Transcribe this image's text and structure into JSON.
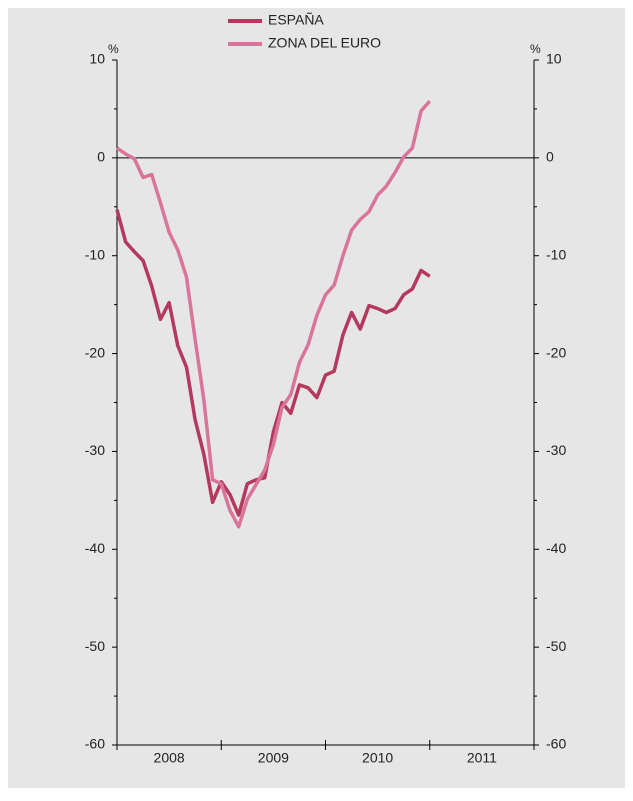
{
  "chart_data": {
    "type": "line",
    "x": [
      2008.0,
      2008.083,
      2008.167,
      2008.25,
      2008.333,
      2008.417,
      2008.5,
      2008.583,
      2008.667,
      2008.75,
      2008.833,
      2008.917,
      2009.0,
      2009.083,
      2009.167,
      2009.25,
      2009.333,
      2009.417,
      2009.5,
      2009.583,
      2009.667,
      2009.75,
      2009.833,
      2009.917,
      2010.0,
      2010.083,
      2010.167,
      2010.25,
      2010.333,
      2010.417,
      2010.5,
      2010.583,
      2010.667,
      2010.75,
      2010.833,
      2010.917,
      2011.0
    ],
    "series": [
      {
        "name": "ESPAÑA",
        "color": "#b5395f",
        "values": [
          -5.3,
          -8.6,
          -9.6,
          -10.5,
          -13.1,
          -16.5,
          -14.8,
          -19.2,
          -21.4,
          -26.8,
          -30.3,
          -35.2,
          -33.1,
          -34.4,
          -36.5,
          -33.3,
          -32.9,
          -32.7,
          -28.0,
          -25.0,
          -26.1,
          -23.2,
          -23.5,
          -24.5,
          -22.2,
          -21.8,
          -18.1,
          -15.8,
          -17.5,
          -15.1,
          -15.4,
          -15.8,
          -15.4,
          -14.0,
          -13.4,
          -11.5,
          -12.1
        ]
      },
      {
        "name": "ZONA DEL EURO",
        "color": "#d9749a",
        "values": [
          1.0,
          0.4,
          -0.1,
          -2.0,
          -1.7,
          -4.6,
          -7.6,
          -9.4,
          -12.2,
          -18.6,
          -24.7,
          -32.9,
          -33.3,
          -36.0,
          -37.7,
          -34.9,
          -33.4,
          -31.9,
          -29.3,
          -25.5,
          -24.2,
          -20.9,
          -19.1,
          -16.1,
          -14.0,
          -13.0,
          -10.0,
          -7.4,
          -6.3,
          -5.5,
          -3.8,
          -2.9,
          -1.5,
          0.1,
          1.0,
          4.8,
          5.8
        ]
      }
    ],
    "xlim": [
      2008,
      2012
    ],
    "xticks": [
      {
        "value": 2008.5,
        "label": "2008"
      },
      {
        "value": 2009.5,
        "label": "2009"
      },
      {
        "value": 2010.5,
        "label": "2010"
      },
      {
        "value": 2011.5,
        "label": "2011"
      }
    ],
    "ylim": [
      -60,
      10
    ],
    "yticks": [
      -60,
      -50,
      -40,
      -30,
      -20,
      -10,
      0,
      10
    ],
    "y2lim": [
      -60,
      10
    ],
    "y2ticks": [
      -60,
      -50,
      -40,
      -30,
      -20,
      -10,
      0,
      10
    ],
    "y_unit": "%",
    "y2_unit": "%"
  }
}
